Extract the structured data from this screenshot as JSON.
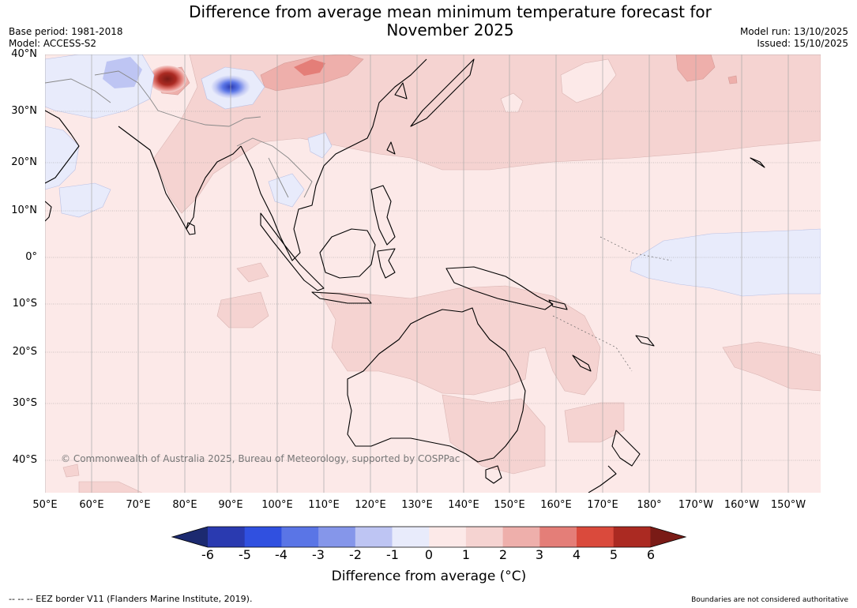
{
  "title_line1": "Difference from average mean minimum temperature forecast for",
  "title_line2": "November 2025",
  "base_period": "Base period: 1981-2018",
  "model": "Model: ACCESS-S2",
  "model_run": "Model run: 13/10/2025",
  "issued": "Issued: 15/10/2025",
  "copyright": "© Commonwealth of Australia 2025, Bureau of Meteorology, supported by COSPPac",
  "lat_labels": [
    "40°N",
    "30°N",
    "20°N",
    "10°N",
    "0°",
    "10°S",
    "20°S",
    "30°S",
    "40°S"
  ],
  "lon_labels": [
    "50°E",
    "60°E",
    "70°E",
    "80°E",
    "90°E",
    "100°E",
    "110°E",
    "120°E",
    "130°E",
    "140°E",
    "150°E",
    "160°E",
    "170°E",
    "180°",
    "170°W",
    "160°W",
    "150°W"
  ],
  "colorbar": {
    "ticks": [
      "-6",
      "-5",
      "-4",
      "-3",
      "-2",
      "-1",
      "0",
      "1",
      "2",
      "3",
      "4",
      "5",
      "6"
    ],
    "colors": [
      "#1c2a70",
      "#2a3ab0",
      "#3050e0",
      "#5a75e6",
      "#8596ea",
      "#bec5f3",
      "#e8ebfb",
      "#fce9e8",
      "#f5d3d1",
      "#eeafab",
      "#e47e78",
      "#da4a3c",
      "#ab2a22",
      "#7a1b16"
    ],
    "label": "Difference from average (°C)"
  },
  "footer_left": "-- -- -- EEZ border V11 (Flanders Marine Institute, 2019).",
  "footer_right": "Boundaries are not considered authoritative"
}
